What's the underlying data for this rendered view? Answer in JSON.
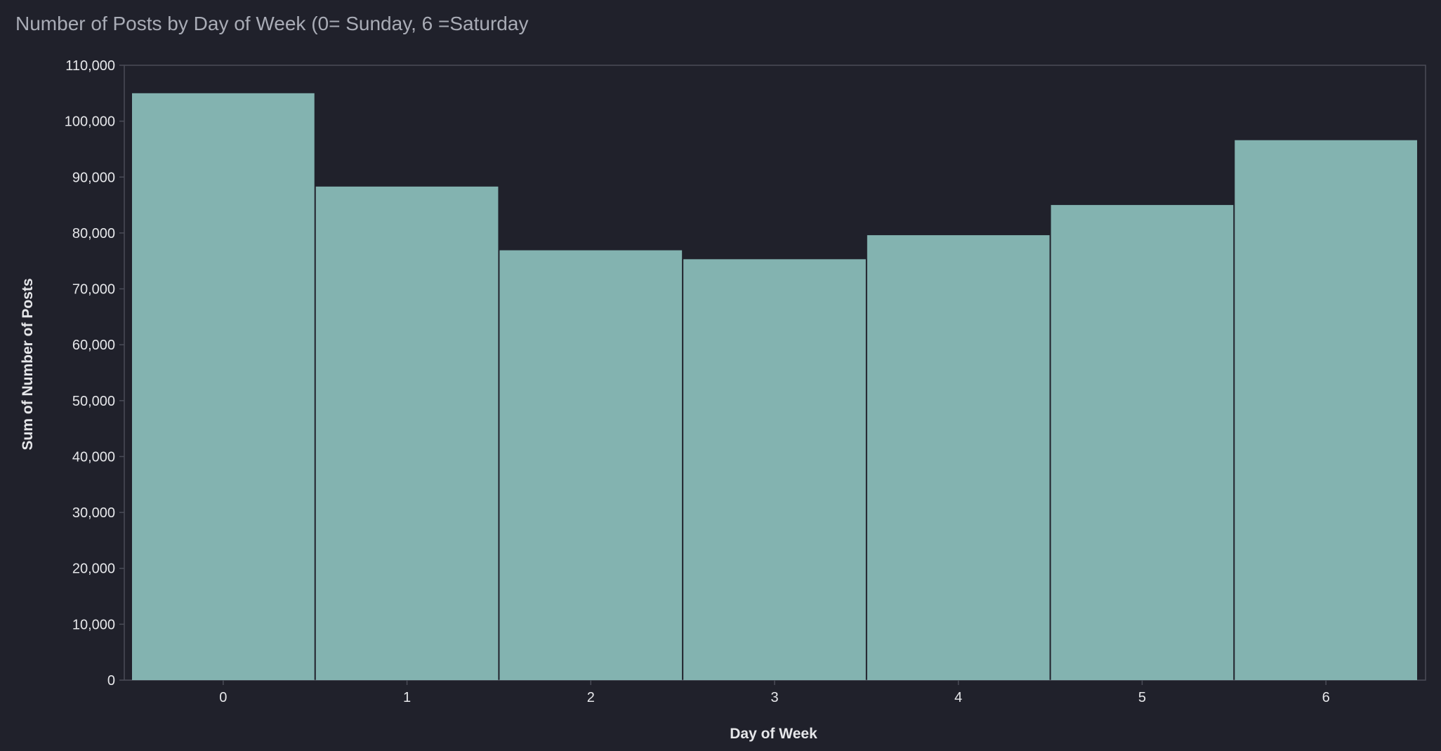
{
  "chart": {
    "title": "Number of Posts by Day of Week (0= Sunday, 6 =Saturday",
    "xlabel": "Day of Week",
    "ylabel": "Sum of Number of Posts"
  },
  "colors": {
    "background": "#20212b",
    "bar": "#83b3b0",
    "axis": "#4a4c57",
    "text": "#e6e7ea",
    "title": "#a9acb6"
  },
  "chart_data": {
    "type": "bar",
    "title": "Number of Posts by Day of Week (0= Sunday, 6 =Saturday",
    "xlabel": "Day of Week",
    "ylabel": "Sum of Number of Posts",
    "categories": [
      "0",
      "1",
      "2",
      "3",
      "4",
      "5",
      "6"
    ],
    "values": [
      105000,
      88300,
      76900,
      75300,
      79600,
      85000,
      96600
    ],
    "ylim": [
      0,
      110000
    ],
    "yticks": [
      0,
      10000,
      20000,
      30000,
      40000,
      50000,
      60000,
      70000,
      80000,
      90000,
      100000,
      110000
    ],
    "ytick_labels": [
      "0",
      "10,000",
      "20,000",
      "30,000",
      "40,000",
      "50,000",
      "60,000",
      "70,000",
      "80,000",
      "90,000",
      "100,000",
      "110,000"
    ],
    "grid": false,
    "legend": "none"
  }
}
